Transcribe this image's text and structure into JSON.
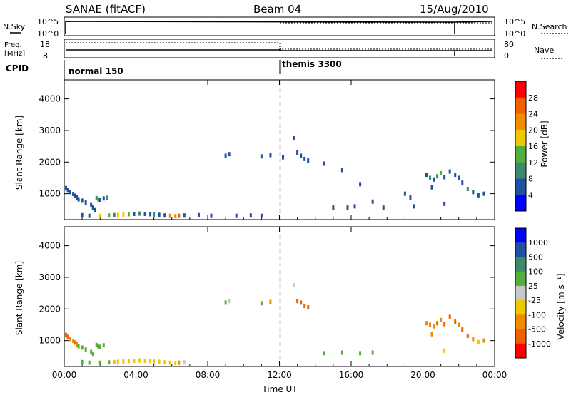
{
  "header": {
    "station": "SANAE (fitACF)",
    "beam": "Beam 04",
    "date": "15/Aug/2010"
  },
  "nsky_panel": {
    "left_label": "N.Sky",
    "right_label": "N.Search",
    "tick_top_left": "10^5",
    "tick_bottom_left": "10^0",
    "tick_top_right": "10^5",
    "tick_bottom_right": "10^0"
  },
  "freq_panel": {
    "left_label_1": "Freq.",
    "left_label_2": "[MHz]",
    "tick_top": "18",
    "tick_bottom": "8",
    "right_label": "Nave",
    "right_tick_top": "80",
    "right_tick_bottom": "0"
  },
  "cpid_panel": {
    "label": "CPID",
    "mode_1": "normal 150",
    "mode_2": "themis 3300"
  },
  "chart_data": [
    {
      "type": "scatter",
      "name": "power",
      "ylabel": "Slant Range [km]",
      "ylim": [
        180,
        4600
      ],
      "yticks": [
        "1000",
        "2000",
        "3000",
        "4000"
      ],
      "colorbar_label": "Power [dB]",
      "colorbar_ticks": [
        "4",
        "8",
        "12",
        "16",
        "20",
        "24",
        "28"
      ],
      "colors": [
        "#0000ff",
        "#2050a0",
        "#3c8a6a",
        "#52b03a",
        "#f0c800",
        "#f08c00",
        "#ee6000",
        "#ff0000"
      ],
      "points": [
        [
          0.1,
          1180,
          1
        ],
        [
          0.2,
          1120,
          1
        ],
        [
          0.3,
          1050,
          1
        ],
        [
          0.5,
          990,
          1
        ],
        [
          0.6,
          940,
          1
        ],
        [
          0.7,
          880,
          1
        ],
        [
          0.8,
          820,
          1
        ],
        [
          1.0,
          780,
          1
        ],
        [
          1.2,
          720,
          1
        ],
        [
          1.5,
          640,
          1
        ],
        [
          1.6,
          560,
          1
        ],
        [
          1.7,
          480,
          1
        ],
        [
          1.8,
          860,
          2
        ],
        [
          1.9,
          820,
          3
        ],
        [
          2.0,
          800,
          1
        ],
        [
          2.2,
          850,
          1
        ],
        [
          2.4,
          870,
          2
        ],
        [
          2.0,
          300,
          4
        ],
        [
          2.5,
          310,
          3
        ],
        [
          2.8,
          320,
          2
        ],
        [
          3.0,
          330,
          4
        ],
        [
          3.3,
          340,
          4
        ],
        [
          3.6,
          350,
          3
        ],
        [
          3.9,
          360,
          1
        ],
        [
          4.2,
          370,
          2
        ],
        [
          4.5,
          360,
          1
        ],
        [
          4.8,
          350,
          1
        ],
        [
          5.0,
          340,
          2
        ],
        [
          5.3,
          330,
          1
        ],
        [
          5.6,
          310,
          1
        ],
        [
          5.9,
          300,
          5
        ],
        [
          6.2,
          290,
          5
        ],
        [
          6.4,
          300,
          6
        ],
        [
          6.7,
          310,
          1
        ],
        [
          1.0,
          320,
          1
        ],
        [
          1.4,
          300,
          1
        ],
        [
          7.5,
          320,
          1
        ],
        [
          8.2,
          300,
          1
        ],
        [
          9.0,
          2200,
          1
        ],
        [
          9.2,
          2250,
          1
        ],
        [
          9.6,
          300,
          1
        ],
        [
          10.4,
          310,
          1
        ],
        [
          11.0,
          2180,
          1
        ],
        [
          11.5,
          2220,
          1
        ],
        [
          11.0,
          300,
          1
        ],
        [
          12.2,
          2150,
          1
        ],
        [
          12.8,
          2750,
          1
        ],
        [
          13.0,
          2300,
          1
        ],
        [
          13.2,
          2200,
          1
        ],
        [
          13.4,
          2100,
          1
        ],
        [
          13.6,
          2050,
          1
        ],
        [
          14.5,
          1950,
          1
        ],
        [
          15.5,
          1750,
          1
        ],
        [
          16.5,
          1300,
          1
        ],
        [
          17.2,
          750,
          1
        ],
        [
          17.8,
          560,
          1
        ],
        [
          15.0,
          560,
          1
        ],
        [
          15.8,
          560,
          1
        ],
        [
          16.2,
          600,
          1
        ],
        [
          19.0,
          1000,
          1
        ],
        [
          19.3,
          880,
          1
        ],
        [
          19.5,
          600,
          1
        ],
        [
          20.2,
          1600,
          1
        ],
        [
          20.4,
          1500,
          2
        ],
        [
          20.6,
          1450,
          1
        ],
        [
          20.8,
          1550,
          2
        ],
        [
          21.0,
          1650,
          3
        ],
        [
          21.2,
          1520,
          1
        ],
        [
          21.5,
          1700,
          1
        ],
        [
          21.8,
          1600,
          1
        ],
        [
          22.0,
          1500,
          1
        ],
        [
          22.2,
          1350,
          1
        ],
        [
          22.5,
          1150,
          2
        ],
        [
          22.8,
          1050,
          1
        ],
        [
          23.1,
          950,
          1
        ],
        [
          23.4,
          1000,
          1
        ],
        [
          21.2,
          680,
          1
        ],
        [
          20.5,
          1200,
          1
        ]
      ]
    },
    {
      "type": "scatter",
      "name": "velocity",
      "xlabel": "Time UT",
      "ylabel": "Slant Range [km]",
      "xlim": [
        0,
        24
      ],
      "ylim": [
        180,
        4600
      ],
      "xticks": [
        "00:00",
        "04:00",
        "08:00",
        "12:00",
        "16:00",
        "20:00",
        "00:00"
      ],
      "yticks": [
        "1000",
        "2000",
        "3000",
        "4000"
      ],
      "colorbar_label": "Velocity [m s⁻¹]",
      "colorbar_ticks": [
        "1000",
        "500",
        "100",
        "25",
        "-25",
        "-100",
        "-500",
        "-1000"
      ],
      "colors": [
        "#0000ff",
        "#2050a0",
        "#3c8a6a",
        "#52b03a",
        "#c8c8c8",
        "#f0c800",
        "#f08c00",
        "#ee6000",
        "#ff0000"
      ],
      "points": [
        [
          0.1,
          1180,
          7
        ],
        [
          0.2,
          1120,
          7
        ],
        [
          0.3,
          1050,
          6
        ],
        [
          0.5,
          990,
          6
        ],
        [
          0.6,
          940,
          7
        ],
        [
          0.7,
          880,
          6
        ],
        [
          0.8,
          820,
          3
        ],
        [
          1.0,
          780,
          3
        ],
        [
          1.2,
          720,
          3
        ],
        [
          1.5,
          640,
          3
        ],
        [
          1.6,
          560,
          3
        ],
        [
          1.8,
          860,
          3
        ],
        [
          1.9,
          820,
          3
        ],
        [
          2.0,
          800,
          3
        ],
        [
          2.2,
          850,
          3
        ],
        [
          2.0,
          300,
          3
        ],
        [
          2.5,
          310,
          3
        ],
        [
          2.8,
          320,
          5
        ],
        [
          3.0,
          330,
          5
        ],
        [
          3.3,
          340,
          5
        ],
        [
          3.6,
          350,
          5
        ],
        [
          3.9,
          360,
          5
        ],
        [
          4.2,
          370,
          5
        ],
        [
          4.5,
          360,
          5
        ],
        [
          4.8,
          350,
          5
        ],
        [
          5.0,
          340,
          5
        ],
        [
          5.3,
          330,
          5
        ],
        [
          5.6,
          310,
          5
        ],
        [
          5.9,
          300,
          5
        ],
        [
          6.2,
          290,
          5
        ],
        [
          6.4,
          300,
          6
        ],
        [
          6.7,
          310,
          4
        ],
        [
          1.0,
          320,
          3
        ],
        [
          1.4,
          300,
          3
        ],
        [
          9.0,
          2200,
          3
        ],
        [
          9.2,
          2250,
          4
        ],
        [
          11.0,
          2180,
          3
        ],
        [
          11.5,
          2220,
          6
        ],
        [
          12.8,
          2750,
          4
        ],
        [
          13.0,
          2250,
          7
        ],
        [
          13.2,
          2200,
          7
        ],
        [
          13.4,
          2100,
          7
        ],
        [
          13.6,
          2050,
          7
        ],
        [
          14.5,
          600,
          3
        ],
        [
          15.5,
          620,
          3
        ],
        [
          16.5,
          600,
          3
        ],
        [
          17.2,
          620,
          3
        ],
        [
          20.2,
          1550,
          6
        ],
        [
          20.4,
          1500,
          6
        ],
        [
          20.6,
          1450,
          6
        ],
        [
          20.8,
          1550,
          7
        ],
        [
          21.0,
          1650,
          6
        ],
        [
          21.2,
          1520,
          7
        ],
        [
          21.5,
          1750,
          7
        ],
        [
          21.8,
          1600,
          7
        ],
        [
          22.0,
          1500,
          6
        ],
        [
          22.2,
          1350,
          7
        ],
        [
          22.5,
          1150,
          7
        ],
        [
          22.8,
          1050,
          6
        ],
        [
          23.1,
          950,
          5
        ],
        [
          23.4,
          1000,
          6
        ],
        [
          21.2,
          680,
          5
        ],
        [
          20.5,
          1200,
          6
        ]
      ]
    }
  ]
}
